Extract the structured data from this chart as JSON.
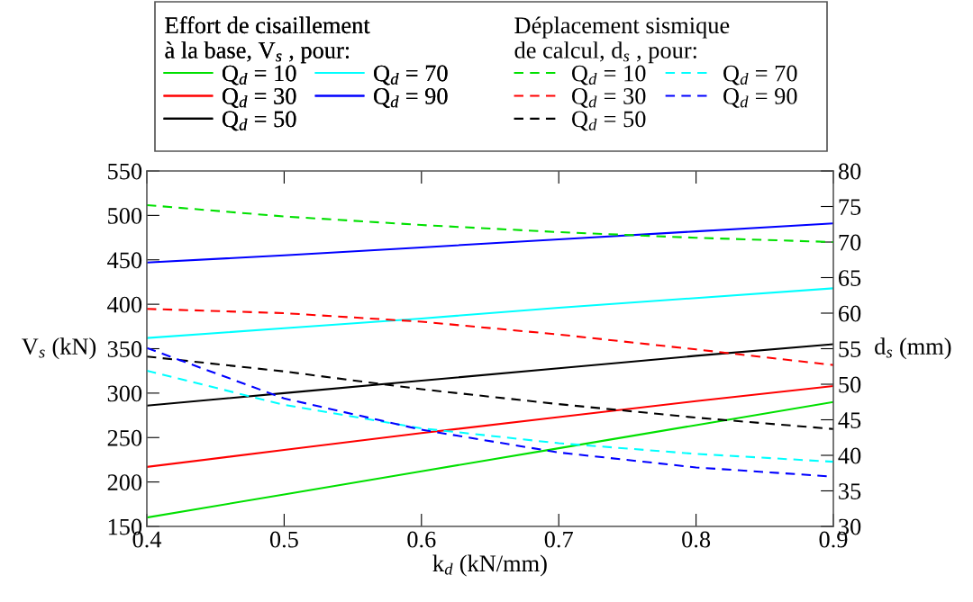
{
  "chart_data": {
    "type": "line",
    "xlabel": "k$_{d}$ (kN/mm)",
    "ylabel": "V$_{s}$ (kN)",
    "y2label": "d$_{s}$ (mm)",
    "legend_title": [
      "Effort de cisaillement\nà la base, V$_{s}$ , pour:",
      "Déplacement sismique\nde calcul, d$_{s}$ , pour:"
    ],
    "legend": "top",
    "x": [
      0.4,
      0.5,
      0.6,
      0.7,
      0.8,
      0.9
    ],
    "xlim": [
      0.4,
      0.9
    ],
    "xticks": [
      0.4,
      0.5,
      0.6,
      0.7,
      0.8,
      0.9
    ],
    "ylim": [
      150,
      550
    ],
    "yticks": [
      150,
      200,
      250,
      300,
      350,
      400,
      450,
      500,
      550
    ],
    "y2lim": [
      30,
      80
    ],
    "y2ticks": [
      30,
      35,
      40,
      45,
      50,
      55,
      60,
      65,
      70,
      75,
      80
    ],
    "grid": false,
    "series": [
      {
        "name": "Q$_{d}$ = 10",
        "color": "#00e000",
        "line_style": "solid",
        "values": [
          160,
          186,
          212,
          238,
          264,
          290
        ]
      },
      {
        "name": "Q$_{d}$ = 30",
        "color": "#ff0000",
        "line_style": "solid",
        "values": [
          217,
          236,
          255,
          273,
          291,
          308
        ]
      },
      {
        "name": "Q$_{d}$ = 50",
        "color": "#000000",
        "line_style": "solid",
        "values": [
          286,
          300,
          314,
          328,
          342,
          355
        ]
      },
      {
        "name": "Q$_{d}$ = 70",
        "color": "#00ffff",
        "line_style": "solid",
        "values": [
          362,
          373,
          384,
          396,
          407,
          418
        ]
      },
      {
        "name": "Q$_{d}$ = 90",
        "color": "#0000ff",
        "line_style": "solid",
        "values": [
          447,
          455,
          464,
          473,
          482,
          491
        ]
      },
      {
        "name": "Q$_{d}$ = 10",
        "color": "#00e000",
        "line_style": "dashed",
        "axis": "y2",
        "values": [
          75.2,
          73.6,
          72.4,
          71.4,
          70.6,
          70.0
        ]
      },
      {
        "name": "Q$_{d}$ = 30",
        "color": "#ff0000",
        "line_style": "dashed",
        "axis": "y2",
        "values": [
          60.6,
          60.0,
          58.8,
          57.0,
          54.9,
          52.7
        ]
      },
      {
        "name": "Q$_{d}$ = 50",
        "color": "#000000",
        "line_style": "dashed",
        "axis": "y2",
        "values": [
          53.9,
          51.8,
          49.3,
          47.2,
          45.3,
          43.7
        ]
      },
      {
        "name": "Q$_{d}$ = 70",
        "color": "#00ffff",
        "line_style": "dashed",
        "axis": "y2",
        "values": [
          51.9,
          47.1,
          43.8,
          41.7,
          40.2,
          39.1
        ]
      },
      {
        "name": "Q$_{d}$ = 90",
        "color": "#0000ff",
        "line_style": "dashed",
        "axis": "y2",
        "values": [
          55.1,
          48.0,
          43.6,
          40.4,
          38.3,
          37.0
        ]
      }
    ]
  }
}
